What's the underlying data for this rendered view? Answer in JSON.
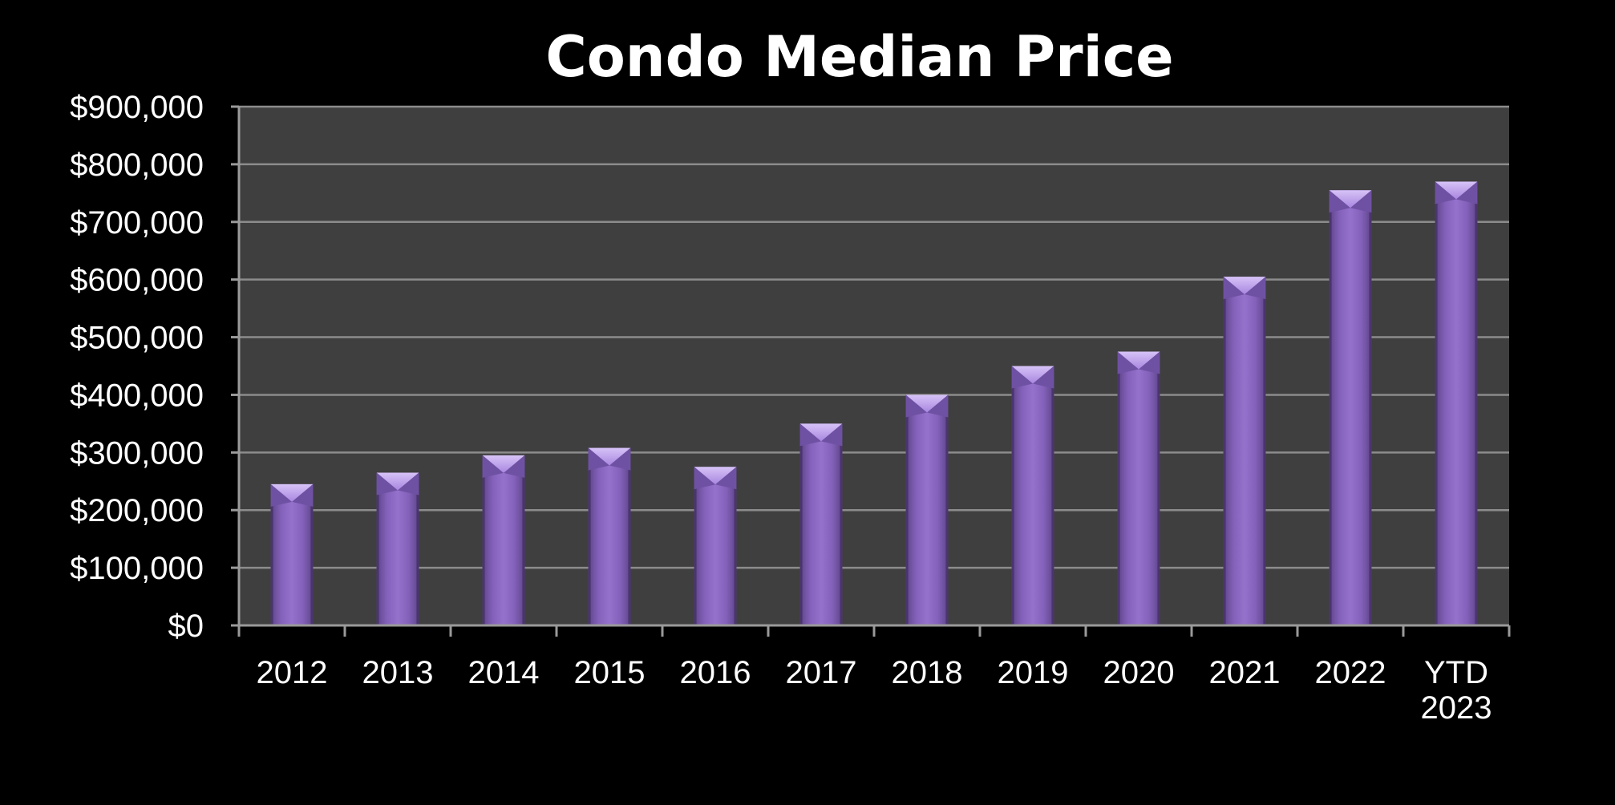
{
  "chart_data": {
    "type": "bar",
    "title": "Condo Median Price",
    "xlabel": "",
    "ylabel": "",
    "categories": [
      "2012",
      "2013",
      "2014",
      "2015",
      "2016",
      "2017",
      "2018",
      "2019",
      "2020",
      "2021",
      "2022",
      "YTD 2023"
    ],
    "category_lines": [
      [
        "2012"
      ],
      [
        "2013"
      ],
      [
        "2014"
      ],
      [
        "2015"
      ],
      [
        "2016"
      ],
      [
        "2017"
      ],
      [
        "2018"
      ],
      [
        "2019"
      ],
      [
        "2020"
      ],
      [
        "2021"
      ],
      [
        "2022"
      ],
      [
        "YTD",
        "2023"
      ]
    ],
    "values": [
      245000,
      265000,
      295000,
      308000,
      275000,
      350000,
      400000,
      450000,
      475000,
      605000,
      755000,
      770000
    ],
    "ylim": [
      0,
      900000
    ],
    "y_ticks": [
      0,
      100000,
      200000,
      300000,
      400000,
      500000,
      600000,
      700000,
      800000,
      900000
    ],
    "y_tick_labels": [
      "$0",
      "$100,000",
      "$200,000",
      "$300,000",
      "$400,000",
      "$500,000",
      "$600,000",
      "$700,000",
      "$800,000",
      "$900,000"
    ],
    "grid": true,
    "legend": "none",
    "colors": {
      "background": "#000000",
      "plot_area": "#3f3f3f",
      "bar_main": "#8a66c0",
      "bar_light": "#a07fd6",
      "bar_dark": "#5e4489",
      "bar_cap": "#c4a8f0",
      "text": "#ffffff"
    }
  }
}
